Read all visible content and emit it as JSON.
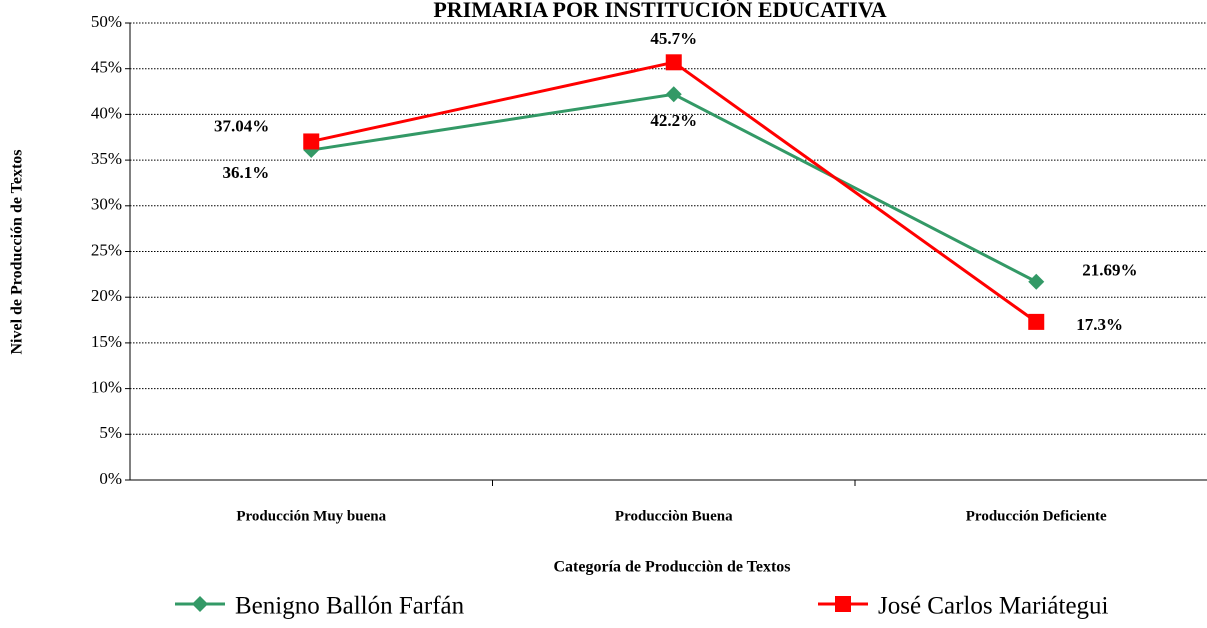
{
  "chart_data": {
    "type": "line",
    "title": "PRIMARIA POR INSTITUCIÓN  EDUCATIVA",
    "y_label": "Nivel de Producción de Textos",
    "x_label": "Categoría de Producciòn de Textos",
    "categories": [
      "Producción Muy buena",
      "Producciòn Buena",
      "Producción Deficiente"
    ],
    "series": [
      {
        "name": "Benigno  Ballón  Farfán",
        "color": "#339966",
        "marker": "diamond",
        "values": [
          36.1,
          42.2,
          21.69
        ],
        "value_labels": [
          "36.1%",
          "42.2%",
          "21.69%"
        ]
      },
      {
        "name": "José Carlos Mariátegui",
        "color": "#ff0000",
        "marker": "square",
        "values": [
          37.04,
          45.7,
          17.3
        ],
        "value_labels": [
          "37.04%",
          "45.7%",
          "17.3%"
        ]
      }
    ],
    "ylim": [
      0,
      50
    ],
    "yticks": [
      {
        "value": 0,
        "label": "0%"
      },
      {
        "value": 5,
        "label": "5%"
      },
      {
        "value": 10,
        "label": "10%"
      },
      {
        "value": 15,
        "label": "15%"
      },
      {
        "value": 20,
        "label": "20%"
      },
      {
        "value": 25,
        "label": "25%"
      },
      {
        "value": 30,
        "label": "30%"
      },
      {
        "value": 35,
        "label": "35%"
      },
      {
        "value": 40,
        "label": "40%"
      },
      {
        "value": 45,
        "label": "45%"
      },
      {
        "value": 50,
        "label": "50%"
      }
    ],
    "grid": true
  }
}
